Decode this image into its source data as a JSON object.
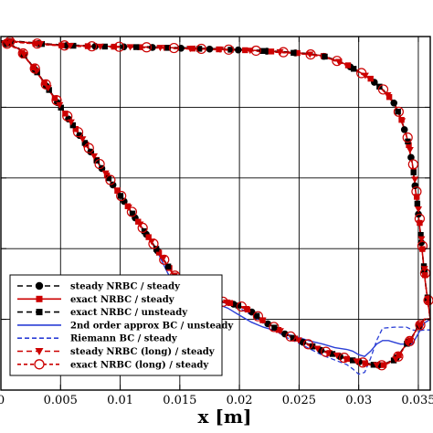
{
  "chart_data": {
    "type": "line",
    "title": "",
    "xlabel": "x [m]",
    "ylabel": "",
    "xlim": [
      0,
      0.036
    ],
    "ylim": [
      0,
      1
    ],
    "x_ticks": [
      0,
      0.005,
      0.01,
      0.015,
      0.02,
      0.025,
      0.03,
      0.035
    ],
    "x_tick_labels": [
      "0",
      "0.005",
      "0.01",
      "0.015",
      "0.02",
      "0.025",
      "0.03",
      "0.035"
    ],
    "y_ticks": [
      0.2,
      0.4,
      0.6,
      0.8
    ],
    "grid": true,
    "legend_position": "bottom-left",
    "series": [
      {
        "name": "steady NRBC / steady",
        "color": "#000000",
        "dash": "dash",
        "marker": "circle-filled"
      },
      {
        "name": "exact NRBC / steady",
        "color": "#cc0000",
        "dash": "solid",
        "marker": "square-filled"
      },
      {
        "name": "exact NRBC / unsteady",
        "color": "#000000",
        "dash": "dash",
        "marker": "square-filled"
      },
      {
        "name": "2nd order approx BC / unsteady",
        "color": "#2b3fd6",
        "dash": "solid",
        "marker": "none"
      },
      {
        "name": "Riemann BC / steady",
        "color": "#2b3fd6",
        "dash": "dash",
        "marker": "none"
      },
      {
        "name": "steady NRBC (long) / steady",
        "color": "#cc0000",
        "dash": "dash",
        "marker": "triangle-down-filled"
      },
      {
        "name": "exact NRBC (long) / steady",
        "color": "#cc0000",
        "dash": "dash",
        "marker": "circle-open"
      }
    ],
    "upper_surface": {
      "x": [
        0,
        0.001,
        0.003,
        0.005,
        0.008,
        0.01,
        0.013,
        0.015,
        0.018,
        0.02,
        0.022,
        0.025,
        0.027,
        0.029,
        0.031,
        0.032,
        0.033,
        0.0335,
        0.034,
        0.0345,
        0.035,
        0.0353,
        0.0356,
        0.036
      ],
      "y": [
        0.986,
        0.986,
        0.98,
        0.975,
        0.972,
        0.971,
        0.969,
        0.967,
        0.964,
        0.962,
        0.959,
        0.953,
        0.945,
        0.92,
        0.88,
        0.85,
        0.81,
        0.77,
        0.72,
        0.64,
        0.5,
        0.4,
        0.3,
        0.2
      ]
    },
    "lower_surface": {
      "x": [
        0,
        0.0015,
        0.003,
        0.005,
        0.007,
        0.009,
        0.011,
        0.013,
        0.015,
        0.016,
        0.017,
        0.018,
        0.019,
        0.02,
        0.021,
        0.022,
        0.023,
        0.024,
        0.025,
        0.026,
        0.027,
        0.028,
        0.029,
        0.03,
        0.031,
        0.032,
        0.033,
        0.0335,
        0.034,
        0.0345,
        0.035,
        0.0355,
        0.036
      ],
      "y": [
        0.986,
        0.965,
        0.9,
        0.8,
        0.7,
        0.6,
        0.5,
        0.4,
        0.3,
        0.27,
        0.255,
        0.252,
        0.248,
        0.238,
        0.222,
        0.195,
        0.175,
        0.155,
        0.14,
        0.125,
        0.11,
        0.1,
        0.088,
        0.08,
        0.072,
        0.07,
        0.085,
        0.105,
        0.13,
        0.15,
        0.18,
        0.2,
        0.2
      ]
    },
    "approx_2nd_order_lower": {
      "x": [
        0,
        0.0015,
        0.003,
        0.005,
        0.007,
        0.009,
        0.011,
        0.013,
        0.014,
        0.015,
        0.016,
        0.017,
        0.018,
        0.019,
        0.02,
        0.021,
        0.022,
        0.023,
        0.024,
        0.025,
        0.026,
        0.027,
        0.028,
        0.029,
        0.0295,
        0.03,
        0.0305,
        0.031,
        0.0315,
        0.032,
        0.0325,
        0.033,
        0.0335,
        0.034,
        0.0345,
        0.035,
        0.0355,
        0.036
      ],
      "y": [
        0.986,
        0.965,
        0.9,
        0.8,
        0.7,
        0.6,
        0.5,
        0.4,
        0.33,
        0.28,
        0.255,
        0.252,
        0.245,
        0.232,
        0.212,
        0.192,
        0.178,
        0.168,
        0.158,
        0.148,
        0.138,
        0.13,
        0.12,
        0.115,
        0.11,
        0.1,
        0.095,
        0.11,
        0.13,
        0.14,
        0.14,
        0.135,
        0.13,
        0.13,
        0.13,
        0.16,
        0.19,
        0.2
      ]
    },
    "riemann_lower": {
      "x": [
        0,
        0.0015,
        0.003,
        0.005,
        0.007,
        0.009,
        0.011,
        0.013,
        0.015,
        0.016,
        0.017,
        0.018,
        0.019,
        0.02,
        0.021,
        0.022,
        0.023,
        0.024,
        0.025,
        0.026,
        0.027,
        0.028,
        0.029,
        0.0295,
        0.03,
        0.0305,
        0.031,
        0.0315,
        0.032,
        0.033,
        0.034,
        0.0345,
        0.035,
        0.0355,
        0.036
      ],
      "y": [
        0.986,
        0.965,
        0.9,
        0.8,
        0.7,
        0.6,
        0.5,
        0.4,
        0.3,
        0.27,
        0.255,
        0.252,
        0.245,
        0.232,
        0.212,
        0.19,
        0.168,
        0.148,
        0.132,
        0.115,
        0.098,
        0.085,
        0.072,
        0.06,
        0.045,
        0.05,
        0.09,
        0.14,
        0.175,
        0.178,
        0.178,
        0.17,
        0.168,
        0.17,
        0.17
      ]
    }
  }
}
